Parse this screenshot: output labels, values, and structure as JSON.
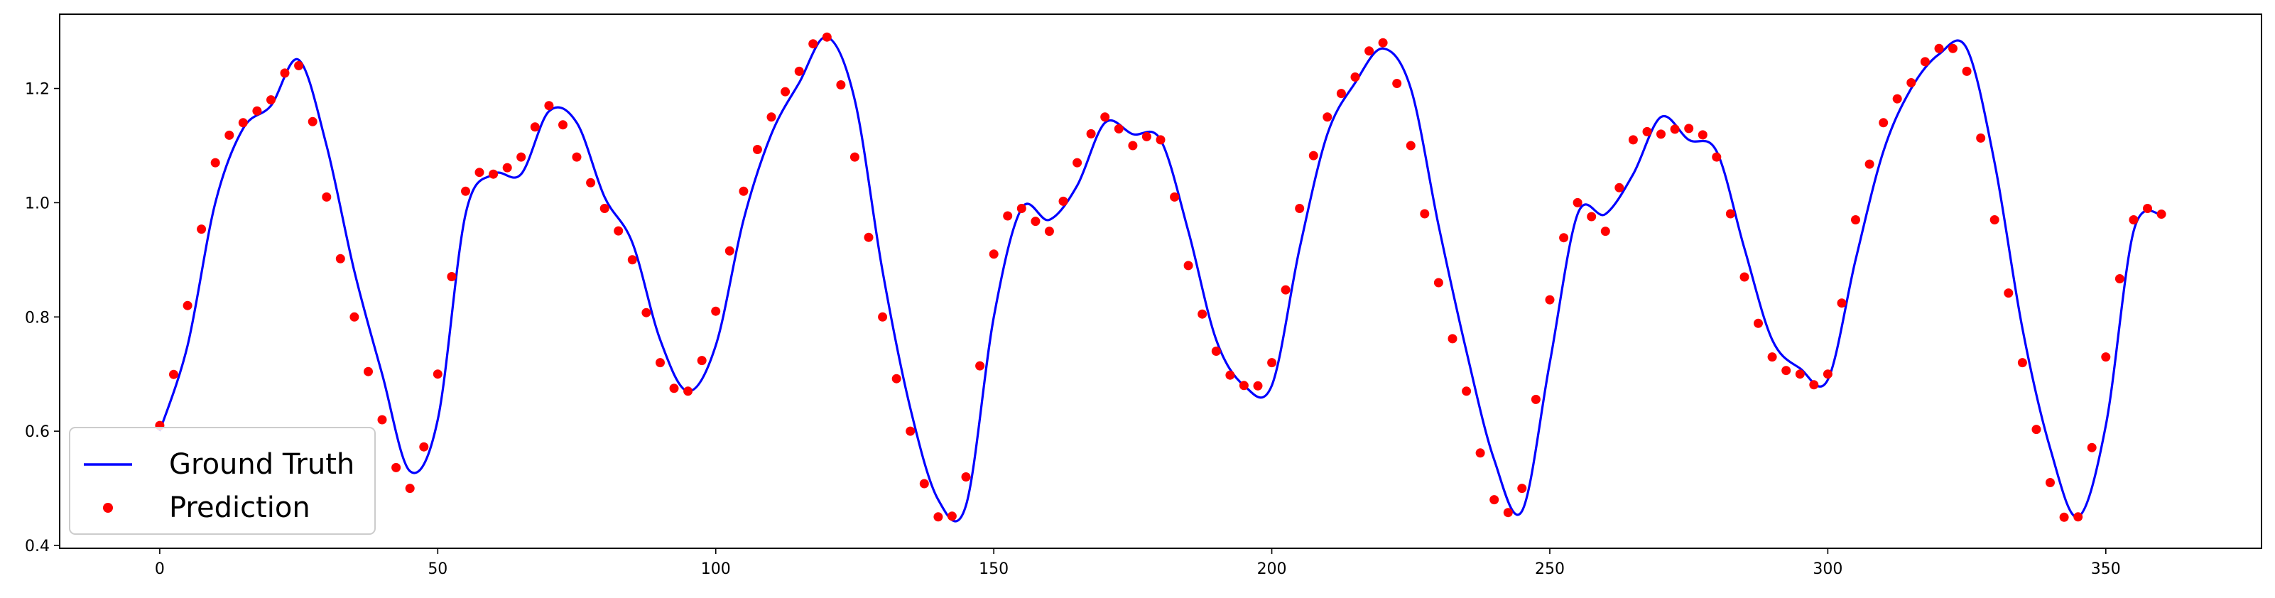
{
  "chart_data": {
    "type": "line",
    "title": "",
    "xlabel": "",
    "ylabel": "",
    "xlim": [
      -18,
      378
    ],
    "ylim": [
      0.395,
      1.33
    ],
    "x_ticks": [
      0,
      50,
      100,
      150,
      200,
      250,
      300,
      350
    ],
    "x_tick_labels": [
      "0",
      "50",
      "100",
      "150",
      "200",
      "250",
      "300",
      "350"
    ],
    "y_ticks": [
      0.4,
      0.6,
      0.8,
      1.0,
      1.2
    ],
    "y_tick_labels": [
      "0.4",
      "0.6",
      "0.8",
      "1.0",
      "1.2"
    ],
    "grid": false,
    "legend_position": "lower-left",
    "series": [
      {
        "name": "Ground Truth",
        "style": "line",
        "color": "#0000ff",
        "x": [
          0,
          5,
          10,
          15,
          20,
          25,
          30,
          35,
          40,
          45,
          50,
          55,
          60,
          65,
          70,
          75,
          80,
          85,
          90,
          95,
          100,
          105,
          110,
          115,
          120,
          125,
          130,
          135,
          140,
          145,
          150,
          155,
          160,
          165,
          170,
          175,
          180,
          185,
          190,
          195,
          200,
          205,
          210,
          215,
          220,
          225,
          230,
          235,
          240,
          245,
          250,
          255,
          260,
          265,
          270,
          275,
          280,
          285,
          290,
          295,
          300,
          305,
          310,
          315,
          320,
          325,
          330,
          335,
          340,
          345,
          350,
          355,
          360
        ],
        "values": [
          0.6,
          0.75,
          1.0,
          1.13,
          1.17,
          1.25,
          1.1,
          0.88,
          0.7,
          0.53,
          0.62,
          0.98,
          1.05,
          1.05,
          1.16,
          1.14,
          1.01,
          0.93,
          0.76,
          0.67,
          0.75,
          0.97,
          1.12,
          1.21,
          1.29,
          1.18,
          0.88,
          0.64,
          0.48,
          0.47,
          0.8,
          0.99,
          0.97,
          1.03,
          1.14,
          1.12,
          1.11,
          0.95,
          0.76,
          0.68,
          0.68,
          0.92,
          1.12,
          1.21,
          1.27,
          1.2,
          0.96,
          0.74,
          0.55,
          0.46,
          0.72,
          0.98,
          0.98,
          1.05,
          1.15,
          1.11,
          1.09,
          0.92,
          0.76,
          0.71,
          0.69,
          0.9,
          1.09,
          1.2,
          1.26,
          1.27,
          1.07,
          0.78,
          0.57,
          0.45,
          0.61,
          0.95,
          0.98
        ]
      },
      {
        "name": "Prediction",
        "style": "markers",
        "color": "#ff0000",
        "x": [
          0,
          5,
          10,
          15,
          20,
          25,
          30,
          35,
          40,
          45,
          50,
          55,
          60,
          65,
          70,
          75,
          80,
          85,
          90,
          95,
          100,
          105,
          110,
          115,
          120,
          125,
          130,
          135,
          140,
          145,
          150,
          155,
          160,
          165,
          170,
          175,
          180,
          185,
          190,
          195,
          200,
          205,
          210,
          215,
          220,
          225,
          230,
          235,
          240,
          245,
          250,
          255,
          260,
          265,
          270,
          275,
          280,
          285,
          290,
          295,
          300,
          305,
          310,
          315,
          320,
          325,
          330,
          335,
          340,
          345,
          350,
          355,
          360
        ],
        "values": [
          0.61,
          0.82,
          1.07,
          1.14,
          1.18,
          1.24,
          1.01,
          0.8,
          0.62,
          0.5,
          0.7,
          1.02,
          1.05,
          1.08,
          1.17,
          1.08,
          0.99,
          0.9,
          0.72,
          0.67,
          0.81,
          1.02,
          1.15,
          1.23,
          1.29,
          1.08,
          0.8,
          0.6,
          0.45,
          0.52,
          0.91,
          0.99,
          0.95,
          1.07,
          1.15,
          1.1,
          1.11,
          0.89,
          0.74,
          0.68,
          0.72,
          0.99,
          1.15,
          1.22,
          1.28,
          1.1,
          0.86,
          0.67,
          0.48,
          0.5,
          0.83,
          1.0,
          0.95,
          1.11,
          1.12,
          1.13,
          1.08,
          0.87,
          0.73,
          0.7,
          0.7,
          0.97,
          1.14,
          1.21,
          1.27,
          1.23,
          0.97,
          0.72,
          0.51,
          0.45,
          0.73,
          0.97,
          0.98
        ]
      }
    ]
  }
}
